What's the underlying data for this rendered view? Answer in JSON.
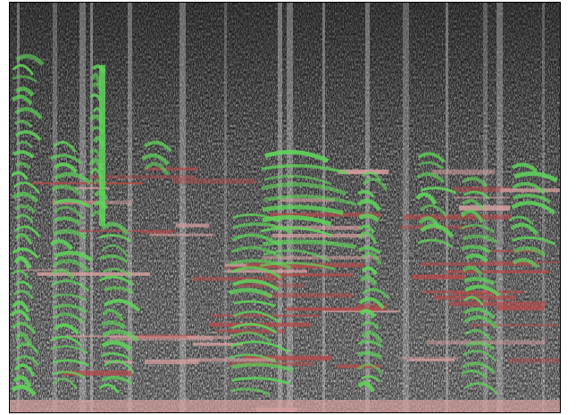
{
  "image": {
    "kind": "spectrogram",
    "colors": {
      "background": "#2d2d2d",
      "noise_light": "#d8d8d8",
      "noise_dark": "#111111",
      "harmonic_green": "#5fd35a",
      "band_red": "#b84a4a",
      "band_pink": "#d7a0a0",
      "frame": "#000000"
    }
  }
}
